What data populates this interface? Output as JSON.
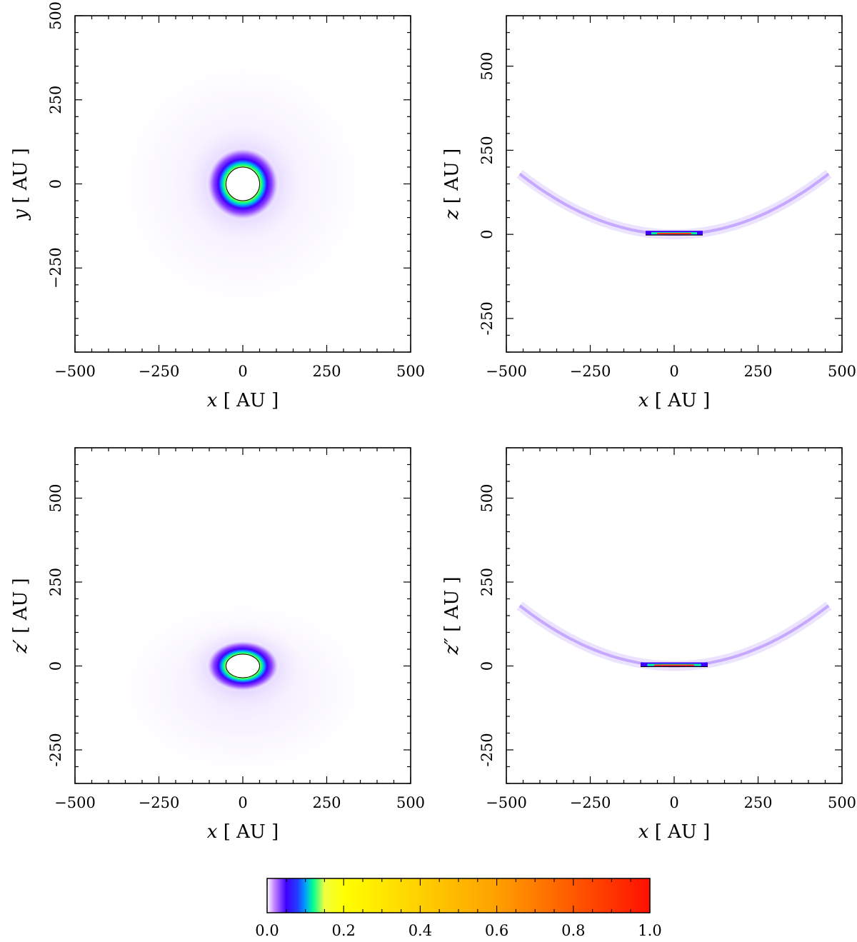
{
  "chart_data": [
    {
      "type": "heatmap",
      "panel": "top-left",
      "description_of_structure": "face-on view: filled ring around central hole",
      "xlabel_var": "x",
      "ylabel_var": "y",
      "unit": "[ AU ]",
      "xlim": [
        -500,
        500
      ],
      "ylim": [
        -500,
        500
      ],
      "xticks": [
        -500,
        -250,
        0,
        250,
        500
      ],
      "xtick_labels": [
        "−500",
        "−250",
        "0",
        "250",
        "500"
      ],
      "yticks": [
        -250,
        0,
        250,
        500
      ],
      "ytick_labels": [
        "−250",
        "0",
        "250",
        "500"
      ],
      "features": {
        "hole_radius": 50,
        "peak_radius": 60,
        "outer_extent": 500,
        "shape": "ring",
        "flatten": 1.0,
        "offset_y": 0
      }
    },
    {
      "type": "heatmap",
      "panel": "top-right",
      "xlabel_var": "x",
      "ylabel_var": "z",
      "unit": "[ AU ]",
      "xlim": [
        -500,
        500
      ],
      "ylim": [
        -350,
        650
      ],
      "xticks": [
        -500,
        -250,
        0,
        250,
        500
      ],
      "xtick_labels": [
        "−500",
        "−250",
        "0",
        "250",
        "500"
      ],
      "yticks": [
        -250,
        0,
        250,
        500
      ],
      "ytick_labels": [
        "-250",
        "0",
        "250",
        "500"
      ],
      "features": {
        "shape": "arc",
        "thin_segment_half_width": 85,
        "arc_curvature": 0.00085,
        "arc_extent": 460
      }
    },
    {
      "type": "heatmap",
      "panel": "bottom-left",
      "xlabel_var": "x",
      "ylabel_var": "z′",
      "unit": "[ AU ]",
      "xlim": [
        -500,
        500
      ],
      "ylim": [
        -350,
        650
      ],
      "xticks": [
        -500,
        -250,
        0,
        250,
        500
      ],
      "xtick_labels": [
        "−500",
        "−250",
        "0",
        "250",
        "500"
      ],
      "yticks": [
        -250,
        0,
        250,
        500
      ],
      "ytick_labels": [
        "-250",
        "0",
        "250",
        "500"
      ],
      "features": {
        "hole_radius": 50,
        "peak_radius": 60,
        "shape": "ring",
        "flatten": 0.7,
        "offset_y": 0
      }
    },
    {
      "type": "heatmap",
      "panel": "bottom-right",
      "xlabel_var": "x",
      "ylabel_var": "z″",
      "unit": "[ AU ]",
      "xlim": [
        -500,
        500
      ],
      "ylim": [
        -350,
        650
      ],
      "xticks": [
        -500,
        -250,
        0,
        250,
        500
      ],
      "xtick_labels": [
        "−500",
        "−250",
        "0",
        "250",
        "500"
      ],
      "yticks": [
        -250,
        0,
        250,
        500
      ],
      "ytick_labels": [
        "-250",
        "0",
        "250",
        "500"
      ],
      "features": {
        "shape": "arc",
        "thin_segment_half_width": 100,
        "arc_curvature": 0.00085,
        "arc_extent": 460
      }
    },
    {
      "type": "colorbar",
      "panel": "bottom",
      "range": [
        0.0,
        1.0
      ],
      "ticks": [
        0.0,
        0.2,
        0.4,
        0.6,
        0.8,
        1.0
      ],
      "tick_labels": [
        "0.0",
        "0.2",
        "0.4",
        "0.6",
        "0.8",
        "1.0"
      ],
      "colors": [
        "#ffffff",
        "#a050ff",
        "#4000ff",
        "#00a0ff",
        "#00ff90",
        "#ffff00",
        "#ffa000",
        "#ff0000"
      ]
    }
  ]
}
